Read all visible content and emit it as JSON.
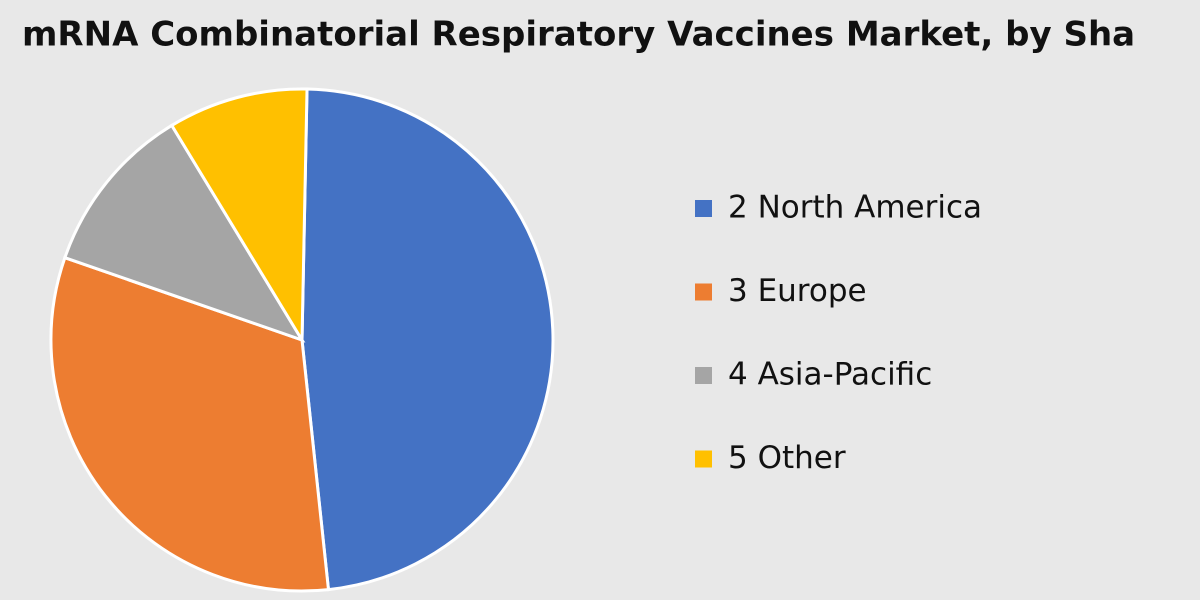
{
  "chart_data": {
    "type": "pie",
    "title": "mRNA Combinatorial Respiratory Vaccines Market, by Sha",
    "categories": [
      "2 North America",
      "3 Europe",
      "4 Asia-Pacific",
      "5 Other"
    ],
    "values": [
      48,
      32,
      11,
      9
    ],
    "colors": [
      "#4472c4",
      "#ed7d31",
      "#a5a5a5",
      "#ffc000"
    ],
    "legend": "right"
  }
}
